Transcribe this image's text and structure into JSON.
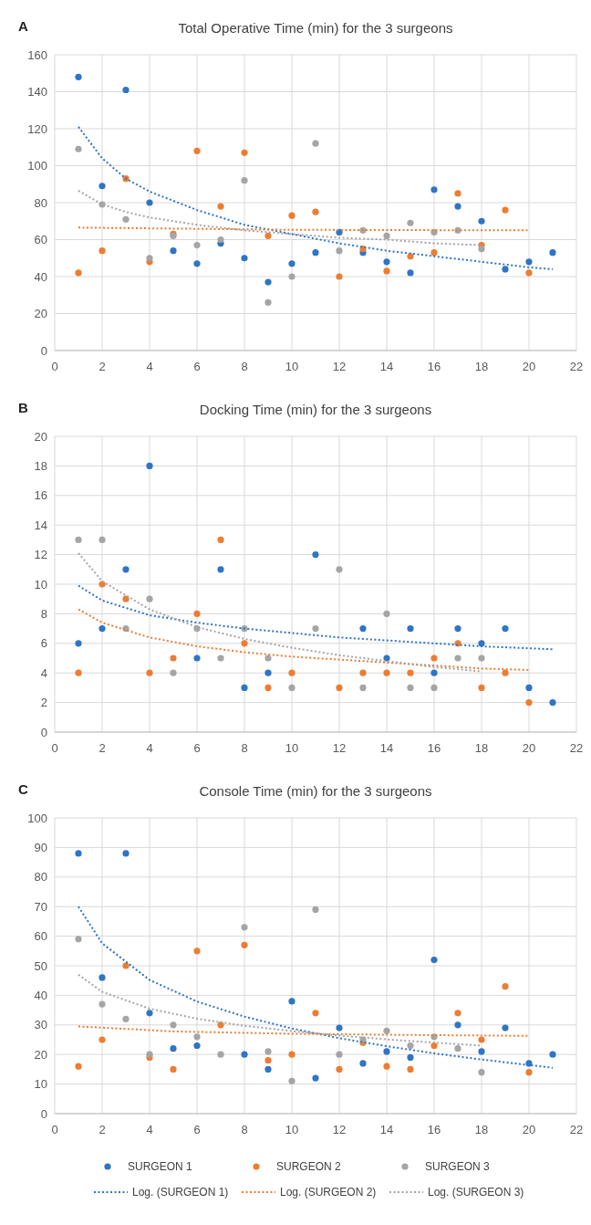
{
  "chart_data": [
    {
      "type": "scatter",
      "title": "Total Operative Time (min) for the 3 surgeons",
      "annotations": [
        "A"
      ],
      "xlim": [
        0,
        22
      ],
      "xticks": [
        0,
        2,
        4,
        6,
        8,
        10,
        12,
        14,
        16,
        18,
        20,
        22
      ],
      "ylim": [
        0,
        160
      ],
      "yticks": [
        0,
        20,
        40,
        60,
        80,
        100,
        120,
        140,
        160
      ],
      "grid": true,
      "legend": false,
      "series": [
        {
          "marker": "circle",
          "color": "#2e75c6",
          "x": [
            1,
            2,
            3,
            4,
            5,
            6,
            7,
            8,
            9,
            10,
            11,
            12,
            13,
            14,
            15,
            16,
            17,
            18,
            19,
            20,
            21
          ],
          "values": [
            148,
            89,
            141,
            80,
            54,
            47,
            58,
            50,
            37,
            47,
            53,
            64,
            53,
            48,
            42,
            87,
            78,
            70,
            44,
            48,
            53
          ]
        },
        {
          "marker": "circle",
          "color": "#ed7d31",
          "x": [
            1,
            2,
            3,
            4,
            5,
            6,
            7,
            8,
            9,
            10,
            11,
            12,
            13,
            14,
            15,
            16,
            17,
            18,
            19,
            20
          ],
          "values": [
            42,
            54,
            93,
            48,
            63,
            108,
            78,
            107,
            62,
            73,
            75,
            40,
            55,
            43,
            51,
            53,
            85,
            57,
            76,
            42
          ]
        },
        {
          "marker": "circle",
          "color": "#a5a5a5",
          "x": [
            1,
            2,
            3,
            4,
            5,
            6,
            7,
            8,
            9,
            10,
            11,
            12,
            13,
            14,
            15,
            16,
            17,
            18
          ],
          "values": [
            109,
            79,
            71,
            50,
            62,
            57,
            60,
            92,
            26,
            40,
            112,
            54,
            65,
            62,
            69,
            64,
            65,
            55
          ]
        },
        {
          "type": "line",
          "marker": "none",
          "line_style": "dotted",
          "color": "#2e75c6",
          "x": [
            1,
            2,
            3,
            4,
            6,
            8,
            10,
            12,
            14,
            16,
            18,
            20,
            21
          ],
          "values": [
            121,
            104,
            93,
            86,
            76,
            68,
            63,
            58,
            54,
            51,
            48,
            45,
            44
          ]
        },
        {
          "type": "line",
          "marker": "none",
          "line_style": "dotted",
          "color": "#ed7d31",
          "x": [
            1,
            10,
            20
          ],
          "values": [
            66.5,
            65.3,
            65
          ]
        },
        {
          "type": "line",
          "marker": "none",
          "line_style": "dotted",
          "color": "#a5a5a5",
          "x": [
            1,
            2,
            3,
            4,
            6,
            8,
            10,
            12,
            14,
            16,
            18
          ],
          "values": [
            86.5,
            79,
            75,
            72,
            68,
            65,
            63,
            61,
            60,
            58,
            57
          ]
        }
      ]
    },
    {
      "type": "scatter",
      "title": "Docking Time (min) for the 3 surgeons",
      "annotations": [
        "B"
      ],
      "xlim": [
        0,
        22
      ],
      "xticks": [
        0,
        2,
        4,
        6,
        8,
        10,
        12,
        14,
        16,
        18,
        20,
        22
      ],
      "ylim": [
        0,
        20
      ],
      "yticks": [
        0,
        2,
        4,
        6,
        8,
        10,
        12,
        14,
        16,
        18,
        20
      ],
      "grid": true,
      "legend": false,
      "series": [
        {
          "marker": "circle",
          "color": "#2e75c6",
          "x": [
            1,
            2,
            3,
            4,
            5,
            6,
            7,
            8,
            9,
            10,
            11,
            12,
            13,
            14,
            15,
            16,
            17,
            18,
            19,
            20,
            21
          ],
          "values": [
            6,
            7,
            11,
            18,
            null,
            5,
            11,
            3,
            4,
            null,
            12,
            null,
            7,
            5,
            7,
            4,
            7,
            6,
            7,
            3,
            2
          ]
        },
        {
          "marker": "circle",
          "color": "#ed7d31",
          "x": [
            1,
            2,
            3,
            4,
            5,
            6,
            7,
            8,
            9,
            10,
            11,
            12,
            13,
            14,
            15,
            16,
            17,
            18,
            19,
            20
          ],
          "values": [
            4,
            10,
            9,
            4,
            5,
            8,
            13,
            6,
            3,
            4,
            null,
            3,
            4,
            4,
            4,
            5,
            6,
            3,
            4,
            2
          ]
        },
        {
          "marker": "circle",
          "color": "#a5a5a5",
          "x": [
            1,
            2,
            3,
            4,
            5,
            6,
            7,
            8,
            9,
            10,
            11,
            12,
            13,
            14,
            15,
            16,
            17,
            18
          ],
          "values": [
            13,
            13,
            7,
            9,
            4,
            7,
            5,
            7,
            5,
            3,
            7,
            11,
            3,
            8,
            3,
            3,
            5,
            5
          ]
        },
        {
          "type": "line",
          "marker": "none",
          "line_style": "dotted",
          "color": "#2e75c6",
          "x": [
            1,
            2,
            4,
            6,
            8,
            10,
            12,
            14,
            16,
            18,
            21
          ],
          "values": [
            9.9,
            8.9,
            7.9,
            7.4,
            7.0,
            6.7,
            6.4,
            6.2,
            6.0,
            5.8,
            5.6
          ]
        },
        {
          "type": "line",
          "marker": "none",
          "line_style": "dotted",
          "color": "#ed7d31",
          "x": [
            1,
            2,
            4,
            6,
            8,
            10,
            12,
            14,
            16,
            18,
            20
          ],
          "values": [
            8.3,
            7.4,
            6.4,
            5.8,
            5.4,
            5.1,
            4.9,
            4.7,
            4.5,
            4.3,
            4.2
          ]
        },
        {
          "type": "line",
          "marker": "none",
          "line_style": "dotted",
          "color": "#a5a5a5",
          "x": [
            1,
            2,
            4,
            6,
            8,
            10,
            12,
            14,
            16,
            18
          ],
          "values": [
            12.1,
            10.2,
            8.3,
            7.1,
            6.3,
            5.7,
            5.2,
            4.8,
            4.4,
            4.1
          ]
        }
      ]
    },
    {
      "type": "scatter",
      "title": "Console Time  (min) for the 3 surgeons",
      "annotations": [
        "C"
      ],
      "xlim": [
        0,
        22
      ],
      "xticks": [
        0,
        2,
        4,
        6,
        8,
        10,
        12,
        14,
        16,
        18,
        20,
        22
      ],
      "ylim": [
        0,
        100
      ],
      "yticks": [
        0,
        10,
        20,
        30,
        40,
        50,
        60,
        70,
        80,
        90,
        100
      ],
      "grid": true,
      "legend": "bottom",
      "series": [
        {
          "name": "SURGEON 1",
          "marker": "circle",
          "color": "#2e75c6",
          "x": [
            1,
            2,
            3,
            4,
            5,
            6,
            7,
            8,
            9,
            10,
            11,
            12,
            13,
            14,
            15,
            16,
            17,
            18,
            19,
            20,
            21
          ],
          "values": [
            88,
            46,
            88,
            34,
            22,
            23,
            null,
            20,
            15,
            38,
            12,
            29,
            17,
            21,
            19,
            52,
            30,
            21,
            29,
            17,
            20
          ]
        },
        {
          "name": "SURGEON 2",
          "marker": "circle",
          "color": "#ed7d31",
          "x": [
            1,
            2,
            3,
            4,
            5,
            6,
            7,
            8,
            9,
            10,
            11,
            12,
            13,
            14,
            15,
            16,
            17,
            18,
            19,
            20
          ],
          "values": [
            16,
            25,
            50,
            19,
            15,
            55,
            30,
            57,
            18,
            20,
            34,
            15,
            24,
            16,
            15,
            23,
            34,
            25,
            43,
            14
          ]
        },
        {
          "name": "SURGEON 3",
          "marker": "circle",
          "color": "#a5a5a5",
          "x": [
            1,
            2,
            3,
            4,
            5,
            6,
            7,
            8,
            9,
            10,
            11,
            12,
            13,
            14,
            15,
            16,
            17,
            18
          ],
          "values": [
            59,
            37,
            32,
            20,
            30,
            26,
            20,
            63,
            21,
            11,
            69,
            20,
            25,
            28,
            23,
            26,
            22,
            14
          ]
        },
        {
          "type": "line",
          "name": "Log. (SURGEON 1)",
          "marker": "none",
          "line_style": "dotted",
          "color": "#2e75c6",
          "x": [
            1,
            2,
            4,
            6,
            8,
            10,
            12,
            14,
            16,
            18,
            21
          ],
          "values": [
            70,
            57.6,
            45.2,
            37.9,
            32.8,
            28.8,
            25.5,
            22.8,
            20.4,
            18.3,
            15.5
          ]
        },
        {
          "type": "line",
          "name": "Log. (SURGEON 2)",
          "marker": "none",
          "line_style": "dotted",
          "color": "#ed7d31",
          "x": [
            1,
            5,
            10,
            15,
            20
          ],
          "values": [
            29.5,
            27.8,
            27.0,
            26.6,
            26.3
          ]
        },
        {
          "type": "line",
          "name": "Log. (SURGEON 3)",
          "marker": "none",
          "line_style": "dotted",
          "color": "#a5a5a5",
          "x": [
            1,
            2,
            4,
            6,
            8,
            10,
            12,
            14,
            16,
            18
          ],
          "values": [
            47,
            41.2,
            35.5,
            32.1,
            29.7,
            27.9,
            26.4,
            25.1,
            24,
            23
          ]
        }
      ]
    }
  ]
}
